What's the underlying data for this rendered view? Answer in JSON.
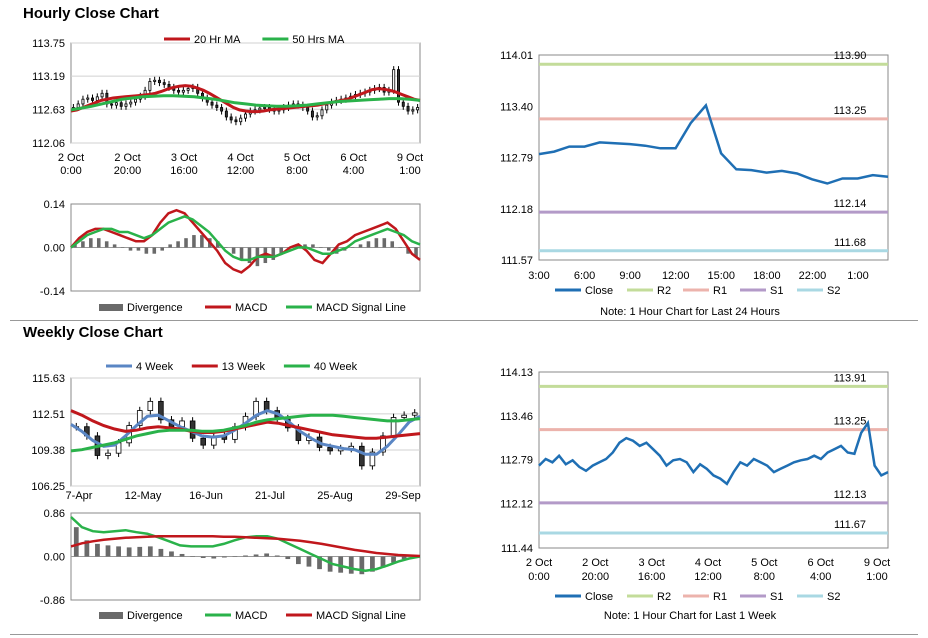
{
  "hourly_title": "Hourly Close Chart",
  "weekly_title": "Weekly Close Chart",
  "colors": {
    "ma20": "#c0171c",
    "ma50": "#2ab24a",
    "macd_red": "#c0171c",
    "macd_green": "#2ab24a",
    "divergence": "#6a6a6a",
    "close": "#1f6fb4",
    "r2": "#c3dc9a",
    "r1": "#ecb3ac",
    "s1": "#b39ac8",
    "s2": "#a9d8e3",
    "wk4": "#5a86c4",
    "wk13": "#c0171c",
    "wk40": "#2ab24a"
  },
  "chart_data": [
    {
      "id": "hourly-price",
      "type": "candlestick",
      "title": "",
      "legend": [
        "20 Hr MA",
        "50 Hrs MA"
      ],
      "y_ticks": [
        "113.75",
        "113.19",
        "112.63",
        "112.06"
      ],
      "ylim": [
        112.06,
        113.75
      ],
      "x_ticks": [
        [
          "2 Oct",
          "0:00"
        ],
        [
          "2 Oct",
          "20:00"
        ],
        [
          "3 Oct",
          "16:00"
        ],
        [
          "4 Oct",
          "12:00"
        ],
        [
          "5 Oct",
          "8:00"
        ],
        [
          "6 Oct",
          "4:00"
        ],
        [
          "9 Oct",
          "1:00"
        ]
      ],
      "close": [
        112.66,
        112.72,
        112.8,
        112.82,
        112.78,
        112.84,
        112.9,
        112.72,
        112.7,
        112.74,
        112.68,
        112.72,
        112.75,
        112.8,
        112.85,
        112.95,
        113.1,
        113.12,
        113.08,
        113.05,
        113.0,
        112.95,
        112.92,
        112.95,
        112.98,
        113.0,
        112.9,
        112.82,
        112.75,
        112.7,
        112.66,
        112.6,
        112.5,
        112.45,
        112.42,
        112.48,
        112.55,
        112.6,
        112.62,
        112.65,
        112.66,
        112.63,
        112.6,
        112.62,
        112.66,
        112.7,
        112.72,
        112.7,
        112.66,
        112.6,
        112.5,
        112.52,
        112.62,
        112.7,
        112.75,
        112.78,
        112.8,
        112.82,
        112.85,
        112.88,
        112.9,
        112.92,
        112.95,
        112.98,
        113.0,
        112.92,
        112.95,
        113.3,
        112.75,
        112.68,
        112.6,
        112.62,
        112.66
      ],
      "ma20": [
        112.6,
        112.62,
        112.66,
        112.7,
        112.74,
        112.78,
        112.8,
        112.82,
        112.83,
        112.84,
        112.85,
        112.86,
        112.87,
        112.88,
        112.9,
        112.93,
        112.97,
        113.0,
        113.02,
        113.03,
        113.02,
        112.99,
        112.95,
        112.9,
        112.84,
        112.78,
        112.72,
        112.66,
        112.62,
        112.6,
        112.59,
        112.59,
        112.6,
        112.62,
        112.63,
        112.64,
        112.65,
        112.66,
        112.67,
        112.68,
        112.69,
        112.7,
        112.72,
        112.74,
        112.76,
        112.78,
        112.8,
        112.84,
        112.88,
        112.92,
        112.96,
        112.98,
        112.97,
        112.95,
        112.92,
        112.88,
        112.84,
        112.8,
        112.78
      ],
      "ma50": [
        112.62,
        112.65,
        112.68,
        112.72,
        112.76,
        112.8,
        112.82,
        112.84,
        112.85,
        112.86,
        112.86,
        112.85,
        112.84,
        112.82,
        112.8,
        112.77,
        112.74,
        112.72,
        112.7,
        112.69,
        112.68,
        112.68,
        112.69,
        112.7,
        112.72,
        112.74,
        112.76,
        112.77,
        112.78,
        112.79,
        112.8,
        112.81,
        112.81,
        112.8,
        112.78
      ],
      "start_x": 0
    },
    {
      "id": "hourly-macd",
      "type": "line+bar",
      "legend": [
        "Divergence",
        "MACD",
        "MACD Signal Line"
      ],
      "y_ticks": [
        "0.14",
        "0.00",
        "-0.14"
      ],
      "ylim": [
        -0.14,
        0.14
      ],
      "divergence": [
        0.01,
        0.02,
        0.03,
        0.03,
        0.02,
        0.01,
        0.0,
        -0.01,
        -0.01,
        -0.02,
        -0.02,
        -0.01,
        0.01,
        0.02,
        0.03,
        0.04,
        0.04,
        0.03,
        0.02,
        0.0,
        -0.02,
        -0.04,
        -0.05,
        -0.06,
        -0.05,
        -0.04,
        -0.02,
        0.0,
        0.01,
        0.01,
        0.01,
        0.0,
        -0.01,
        -0.02,
        -0.01,
        0.0,
        0.01,
        0.02,
        0.03,
        0.03,
        0.02,
        0.0,
        -0.02,
        -0.03
      ],
      "macd": [
        0.0,
        0.03,
        0.05,
        0.06,
        0.06,
        0.05,
        0.04,
        0.03,
        0.02,
        0.02,
        0.04,
        0.08,
        0.11,
        0.12,
        0.11,
        0.08,
        0.05,
        0.02,
        -0.01,
        -0.05,
        -0.07,
        -0.08,
        -0.06,
        -0.03,
        -0.02,
        -0.03,
        -0.02,
        0.0,
        0.01,
        -0.01,
        -0.04,
        -0.05,
        -0.02,
        0.01,
        0.02,
        0.04,
        0.05,
        0.06,
        0.07,
        0.08,
        0.06,
        0.02,
        -0.02,
        -0.04
      ],
      "signal": [
        0.0,
        0.02,
        0.04,
        0.05,
        0.06,
        0.06,
        0.05,
        0.05,
        0.04,
        0.03,
        0.04,
        0.06,
        0.08,
        0.09,
        0.1,
        0.09,
        0.07,
        0.05,
        0.02,
        -0.01,
        -0.03,
        -0.04,
        -0.04,
        -0.03,
        -0.03,
        -0.03,
        -0.02,
        -0.01,
        0.0,
        0.0,
        -0.01,
        -0.02,
        -0.02,
        -0.01,
        0.0,
        0.02,
        0.03,
        0.04,
        0.05,
        0.06,
        0.05,
        0.04,
        0.02,
        0.01
      ]
    },
    {
      "id": "hourly-close-24h",
      "type": "line",
      "legend": [
        "Close",
        "R2",
        "R1",
        "S1",
        "S2"
      ],
      "y_ticks": [
        "114.01",
        "113.40",
        "112.79",
        "112.18",
        "111.57"
      ],
      "ylim": [
        111.57,
        114.01
      ],
      "x_ticks": [
        "3:00",
        "6:00",
        "9:00",
        "12:00",
        "15:00",
        "18:00",
        "22:00",
        "1:00"
      ],
      "levels": [
        {
          "name": "R2",
          "value": 113.9,
          "label": "113.90"
        },
        {
          "name": "R1",
          "value": 113.25,
          "label": "113.25"
        },
        {
          "name": "S1",
          "value": 112.14,
          "label": "112.14"
        },
        {
          "name": "S2",
          "value": 111.68,
          "label": "111.68"
        }
      ],
      "close": [
        112.83,
        112.86,
        112.92,
        112.92,
        112.97,
        112.96,
        112.95,
        112.93,
        112.9,
        112.9,
        113.2,
        113.41,
        112.84,
        112.65,
        112.64,
        112.61,
        112.63,
        112.6,
        112.53,
        112.48,
        112.54,
        112.54,
        112.58,
        112.56
      ],
      "note": "Note: 1 Hour Chart for Last 24 Hours"
    },
    {
      "id": "weekly-price",
      "type": "candlestick",
      "legend": [
        "4 Week",
        "13 Week",
        "40 Week"
      ],
      "y_ticks": [
        "115.63",
        "112.51",
        "109.38",
        "106.25"
      ],
      "ylim": [
        106.25,
        115.63
      ],
      "x_ticks": [
        "7-Apr",
        "12-May",
        "16-Jun",
        "21-Jul",
        "25-Aug",
        "29-Sep"
      ],
      "close": [
        111.4,
        110.6,
        108.9,
        109.1,
        110.0,
        111.5,
        112.8,
        113.6,
        112.0,
        111.4,
        111.9,
        110.4,
        109.8,
        110.6,
        110.3,
        111.4,
        112.3,
        113.6,
        112.8,
        112.1,
        111.3,
        110.2,
        110.5,
        109.6,
        109.3,
        109.5,
        109.7,
        108.0,
        109.2,
        110.6,
        112.2,
        112.4,
        112.6
      ],
      "wk4": [
        111.6,
        111.0,
        110.2,
        109.7,
        109.8,
        110.6,
        111.5,
        112.3,
        112.4,
        111.9,
        111.4,
        111.0,
        110.6,
        110.5,
        110.6,
        111.1,
        111.7,
        112.4,
        112.8,
        112.5,
        111.8,
        111.0,
        110.4,
        109.9,
        109.7,
        109.5,
        109.4,
        109.0,
        109.0,
        109.7,
        110.7,
        111.8,
        112.3
      ],
      "wk13": [
        112.8,
        112.4,
        111.9,
        111.5,
        111.2,
        111.0,
        111.1,
        111.3,
        111.4,
        111.3,
        111.2,
        111.0,
        110.9,
        110.9,
        111.0,
        111.2,
        111.4,
        111.6,
        111.8,
        111.7,
        111.5,
        111.3,
        111.1,
        110.9,
        110.7,
        110.6,
        110.5,
        110.4,
        110.4,
        110.5,
        110.6,
        110.7,
        110.8
      ],
      "wk40": [
        109.3,
        109.4,
        109.6,
        109.8,
        110.0,
        110.3,
        110.6,
        110.8,
        111.0,
        111.1,
        111.1,
        111.1,
        111.0,
        111.0,
        111.1,
        111.3,
        111.5,
        111.8,
        112.0,
        112.1,
        112.2,
        112.3,
        112.4,
        112.4,
        112.4,
        112.3,
        112.2,
        112.1,
        112.0,
        111.9,
        111.9,
        112.0,
        112.1
      ]
    },
    {
      "id": "weekly-macd",
      "type": "line+bar",
      "legend": [
        "Divergence",
        "MACD",
        "MACD Signal Line"
      ],
      "y_ticks": [
        "0.86",
        "0.00",
        "-0.86"
      ],
      "ylim": [
        -0.86,
        0.86
      ],
      "divergence": [
        0.58,
        0.32,
        0.25,
        0.22,
        0.2,
        0.18,
        0.19,
        0.2,
        0.15,
        0.1,
        0.05,
        0.0,
        -0.03,
        -0.04,
        -0.02,
        -0.01,
        0.02,
        0.04,
        0.06,
        0.02,
        -0.05,
        -0.15,
        -0.2,
        -0.25,
        -0.3,
        -0.32,
        -0.34,
        -0.35,
        -0.3,
        -0.22,
        -0.12,
        -0.05,
        -0.02
      ],
      "macd": [
        0.78,
        0.58,
        0.5,
        0.48,
        0.5,
        0.52,
        0.48,
        0.45,
        0.38,
        0.3,
        0.22,
        0.2,
        0.2,
        0.2,
        0.25,
        0.32,
        0.38,
        0.4,
        0.4,
        0.35,
        0.25,
        0.15,
        0.05,
        -0.05,
        -0.15,
        -0.2,
        -0.25,
        -0.28,
        -0.25,
        -0.18,
        -0.1,
        -0.04,
        0.0
      ],
      "signal": [
        0.2,
        0.26,
        0.3,
        0.33,
        0.35,
        0.37,
        0.38,
        0.39,
        0.4,
        0.4,
        0.4,
        0.4,
        0.4,
        0.4,
        0.39,
        0.39,
        0.38,
        0.37,
        0.36,
        0.35,
        0.33,
        0.31,
        0.28,
        0.25,
        0.21,
        0.17,
        0.13,
        0.1,
        0.07,
        0.05,
        0.03,
        0.02,
        0.01
      ]
    },
    {
      "id": "weekly-close-1wk",
      "type": "line",
      "legend": [
        "Close",
        "R2",
        "R1",
        "S1",
        "S2"
      ],
      "y_ticks": [
        "114.13",
        "113.46",
        "112.79",
        "112.12",
        "111.44"
      ],
      "ylim": [
        111.44,
        114.13
      ],
      "x_ticks": [
        [
          "2 Oct",
          "0:00"
        ],
        [
          "2 Oct",
          "20:00"
        ],
        [
          "3 Oct",
          "16:00"
        ],
        [
          "4 Oct",
          "12:00"
        ],
        [
          "5 Oct",
          "8:00"
        ],
        [
          "6 Oct",
          "4:00"
        ],
        [
          "9 Oct",
          "1:00"
        ]
      ],
      "levels": [
        {
          "name": "R2",
          "value": 113.91,
          "label": "113.91"
        },
        {
          "name": "R1",
          "value": 113.25,
          "label": "113.25"
        },
        {
          "name": "S1",
          "value": 112.13,
          "label": "112.13"
        },
        {
          "name": "S2",
          "value": 111.67,
          "label": "111.67"
        }
      ],
      "close": [
        112.7,
        112.8,
        112.75,
        112.85,
        112.72,
        112.78,
        112.68,
        112.62,
        112.7,
        112.75,
        112.8,
        112.9,
        113.05,
        113.12,
        113.08,
        113.0,
        113.05,
        112.95,
        112.85,
        112.7,
        112.78,
        112.8,
        112.75,
        112.6,
        112.72,
        112.65,
        112.55,
        112.5,
        112.42,
        112.6,
        112.75,
        112.7,
        112.8,
        112.75,
        112.7,
        112.6,
        112.65,
        112.7,
        112.75,
        112.78,
        112.8,
        112.85,
        112.8,
        112.9,
        112.95,
        113.0,
        112.9,
        112.88,
        113.2,
        113.35,
        112.7,
        112.55,
        112.6
      ],
      "note": "Note: 1 Hour Chart for Last 1 Week"
    }
  ]
}
